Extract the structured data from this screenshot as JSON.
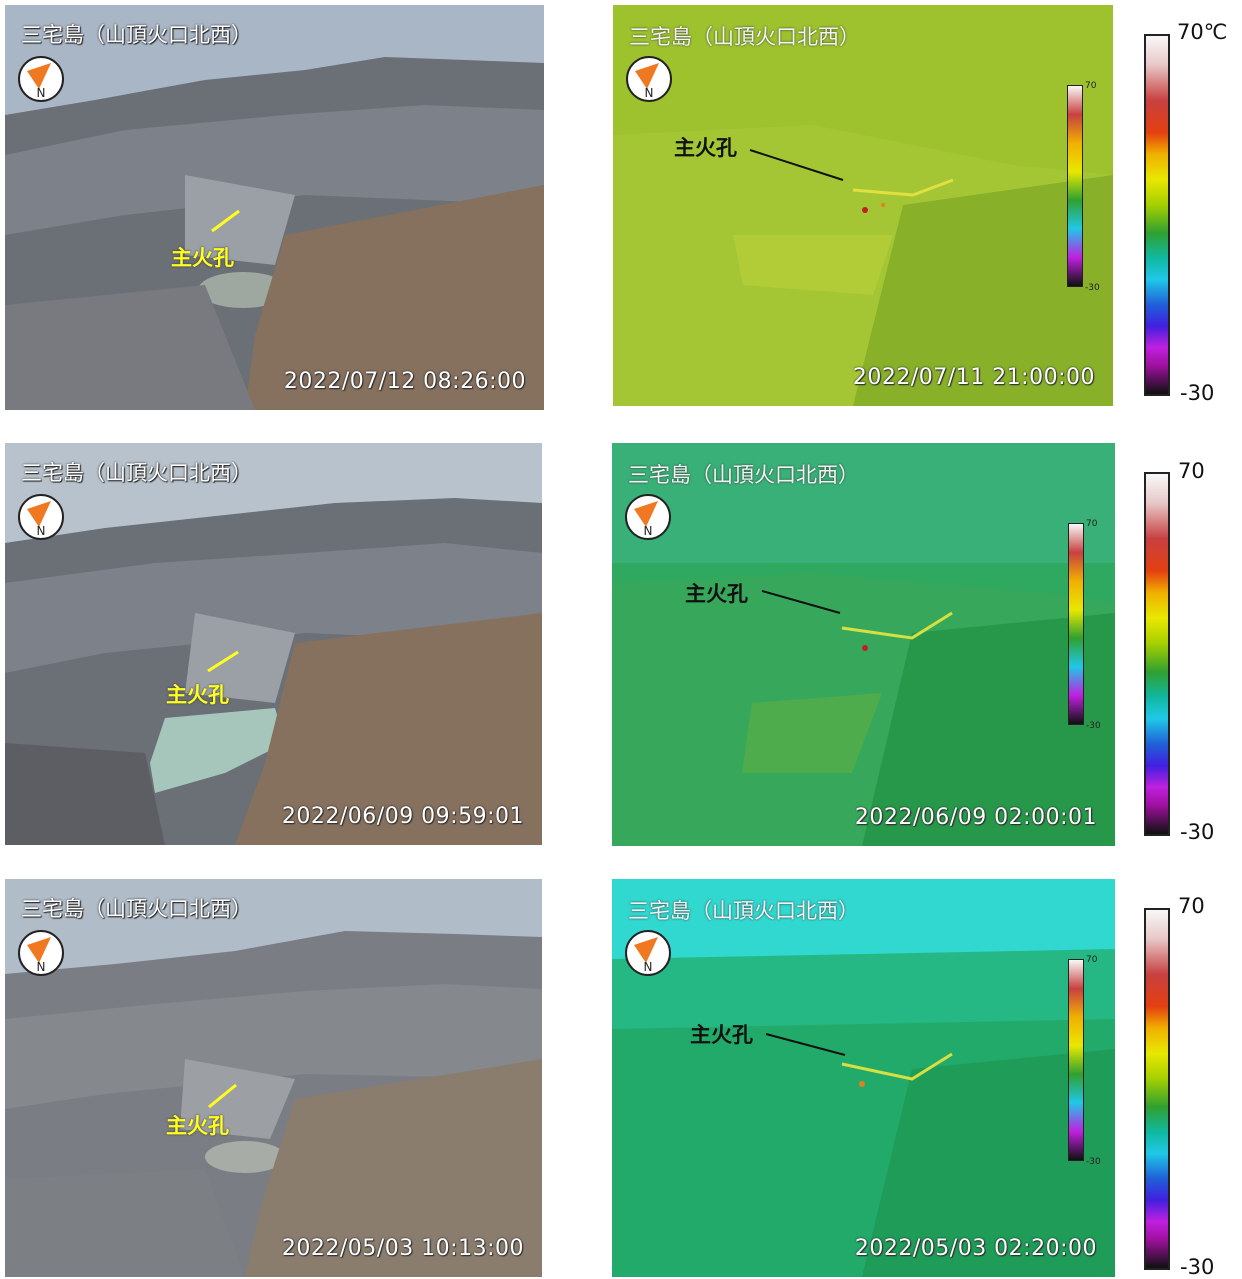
{
  "rows": [
    {
      "visible": {
        "title": "三宅島（山頂火口北西）",
        "timestamp": "2022/07/12 08:26:00",
        "crater_label": "主火孔"
      },
      "thermal": {
        "title": "三宅島（山頂火口北西）",
        "timestamp": "2022/07/11 21:00:00",
        "crater_label": "主火孔",
        "scale_max": "70",
        "scale_min": "-30"
      },
      "scale": {
        "max": "70℃",
        "min": "-30"
      }
    },
    {
      "visible": {
        "title": "三宅島（山頂火口北西）",
        "timestamp": "2022/06/09 09:59:01",
        "crater_label": "主火孔"
      },
      "thermal": {
        "title": "三宅島（山頂火口北西）",
        "timestamp": "2022/06/09 02:00:01",
        "crater_label": "主火孔",
        "scale_max": "70",
        "scale_min": "-30"
      },
      "scale": {
        "max": "70",
        "min": "-30"
      }
    },
    {
      "visible": {
        "title": "三宅島（山頂火口北西）",
        "timestamp": "2022/05/03 10:13:00",
        "crater_label": "主火孔"
      },
      "thermal": {
        "title": "三宅島（山頂火口北西）",
        "timestamp": "2022/05/03 02:20:00",
        "crater_label": "主火孔",
        "scale_max": "70",
        "scale_min": "-30"
      },
      "scale": {
        "max": "70",
        "min": "-30"
      }
    }
  ],
  "colors": {
    "crater_label": "#ffff1f",
    "thermal_row1": "#9dc22e",
    "thermal_row2": "#2fa860",
    "thermal_row3": "#22aa6a"
  }
}
